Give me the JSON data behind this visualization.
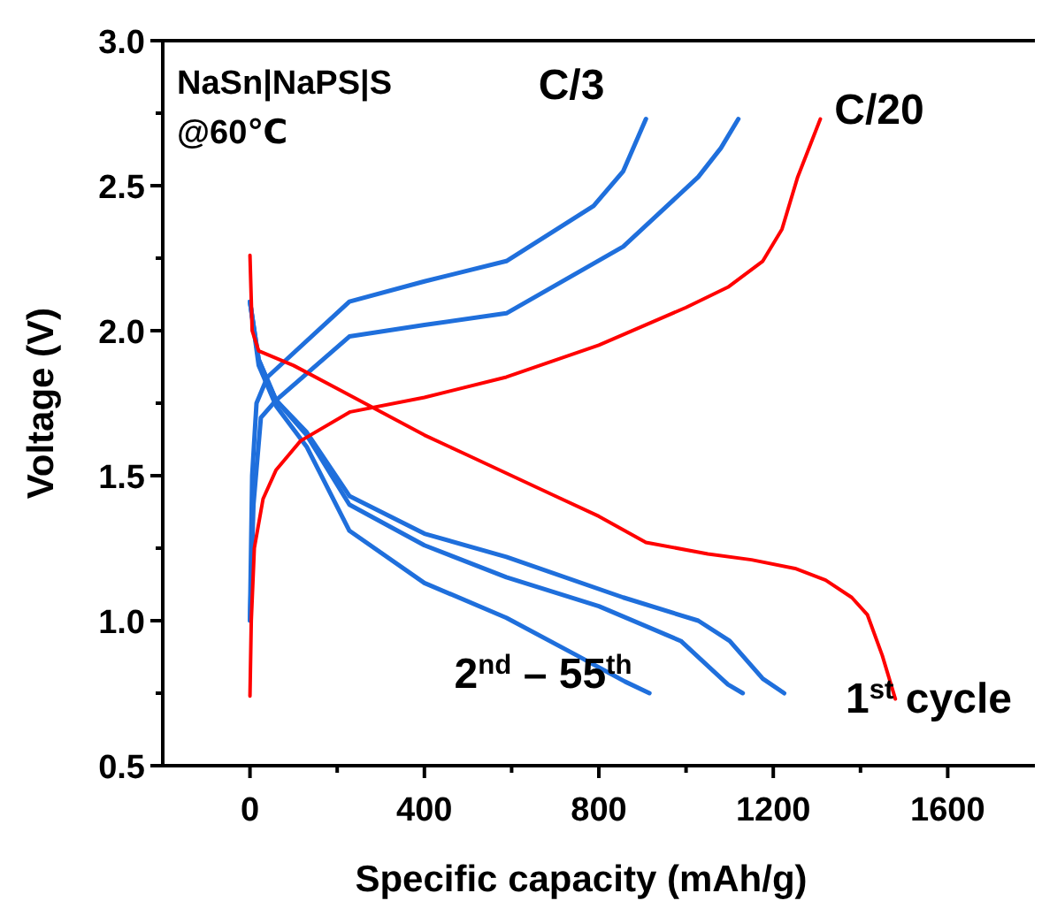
{
  "chart_data": {
    "type": "line",
    "xlabel": "Specific capacity (mAh/g)",
    "ylabel": "Voltage (V)",
    "xlim": [
      -200,
      1800
    ],
    "ylim": [
      0.5,
      3.0
    ],
    "xticks": [
      0,
      {
        "value": 200,
        "label": null
      },
      400,
      {
        "value": 600,
        "label": null
      },
      800,
      {
        "value": 1000,
        "label": null
      },
      1200,
      {
        "value": 1400,
        "label": null
      },
      1600
    ],
    "yticks": [
      0.5,
      {
        "value": 0.75,
        "label": null
      },
      {
        "value": 1,
        "label": "1.0"
      },
      {
        "value": 1.25,
        "label": null
      },
      1.5,
      {
        "value": 1.75,
        "label": null
      },
      {
        "value": 2,
        "label": "2.0"
      },
      {
        "value": 2.25,
        "label": null
      },
      2.5,
      {
        "value": 2.75,
        "label": null
      },
      {
        "value": 3,
        "label": "3.0"
      }
    ],
    "grid": false,
    "marker": "none",
    "line_style": "solid",
    "series": [
      {
        "color": "#1f6fdc",
        "x": [
          0,
          20,
          60,
          130,
          228,
          400,
          588,
          750,
          860,
          916
        ],
        "values": [
          2.1,
          1.88,
          1.74,
          1.6,
          1.31,
          1.13,
          1.01,
          0.88,
          0.79,
          0.75
        ]
      },
      {
        "color": "#1f6fdc",
        "x": [
          0,
          20,
          60,
          130,
          228,
          400,
          588,
          800,
          988,
          1096,
          1130
        ],
        "values": [
          2.1,
          1.9,
          1.76,
          1.64,
          1.4,
          1.26,
          1.15,
          1.05,
          0.93,
          0.78,
          0.75
        ]
      },
      {
        "color": "#1f6fdc",
        "x": [
          0,
          20,
          60,
          130,
          228,
          400,
          588,
          856,
          1028,
          1100,
          1176,
          1225
        ],
        "values": [
          2.1,
          1.9,
          1.76,
          1.65,
          1.43,
          1.3,
          1.22,
          1.08,
          1.0,
          0.93,
          0.8,
          0.75
        ]
      },
      {
        "color": "#1f6fdc",
        "x": [
          0,
          5,
          15,
          40,
          228,
          400,
          588,
          788,
          856,
          908
        ],
        "values": [
          1.0,
          1.5,
          1.75,
          1.84,
          2.1,
          2.17,
          2.24,
          2.43,
          2.55,
          2.73
        ]
      },
      {
        "color": "#1f6fdc",
        "x": [
          0,
          8,
          25,
          60,
          228,
          400,
          588,
          856,
          1028,
          1080,
          1120
        ],
        "values": [
          1.0,
          1.4,
          1.7,
          1.76,
          1.98,
          2.02,
          2.06,
          2.29,
          2.53,
          2.63,
          2.73
        ]
      },
      {
        "color": "#ff0000",
        "x": [
          0,
          5,
          20,
          100,
          200,
          300,
          400,
          500,
          600,
          700,
          800,
          908,
          1050,
          1150,
          1250,
          1320,
          1380,
          1416,
          1450,
          1480
        ],
        "values": [
          2.26,
          2.0,
          1.93,
          1.88,
          1.8,
          1.72,
          1.64,
          1.57,
          1.5,
          1.43,
          1.36,
          1.27,
          1.23,
          1.21,
          1.18,
          1.14,
          1.08,
          1.02,
          0.88,
          0.73
        ]
      },
      {
        "color": "#ff0000",
        "x": [
          0,
          3,
          10,
          30,
          60,
          116,
          230,
          400,
          588,
          800,
          1000,
          1096,
          1176,
          1220,
          1256,
          1308
        ],
        "values": [
          0.74,
          1.0,
          1.25,
          1.42,
          1.52,
          1.62,
          1.72,
          1.77,
          1.84,
          1.95,
          2.08,
          2.15,
          2.24,
          2.35,
          2.53,
          2.73
        ]
      }
    ],
    "annotations": [
      "NaSn|NaPS|S",
      "@60℃",
      "C/3",
      "C/20",
      "2$^{nd}$ – 55$^{th}$",
      "1$^{st}$ cycle"
    ]
  }
}
